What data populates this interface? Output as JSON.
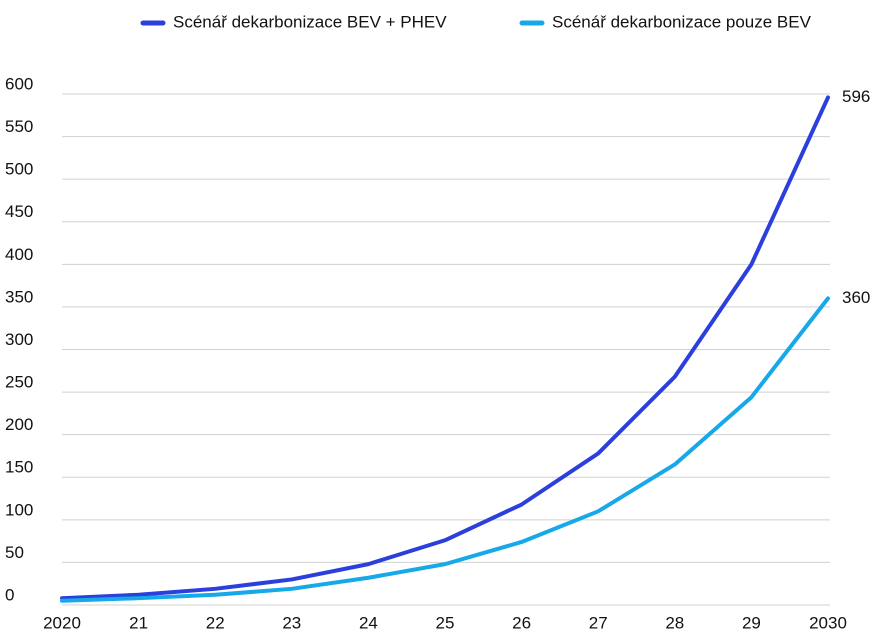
{
  "chart_data": {
    "type": "line",
    "categories": [
      "2020",
      "21",
      "22",
      "23",
      "24",
      "25",
      "26",
      "27",
      "28",
      "29",
      "2030"
    ],
    "series": [
      {
        "name": "Scénář dekarbonizace BEV + PHEV",
        "color": "#2a3fdc",
        "values": [
          8,
          12,
          19,
          30,
          48,
          76,
          118,
          178,
          268,
          400,
          596
        ]
      },
      {
        "name": "Scénář dekarbonizace pouze BEV",
        "color": "#16a8e8",
        "values": [
          5,
          8,
          12,
          19,
          32,
          48,
          74,
          110,
          165,
          244,
          360
        ]
      }
    ],
    "ylim": [
      0,
      600
    ],
    "yticks": [
      0,
      50,
      100,
      150,
      200,
      250,
      300,
      350,
      400,
      450,
      500,
      550,
      600
    ],
    "grid": true,
    "legend": "top"
  }
}
